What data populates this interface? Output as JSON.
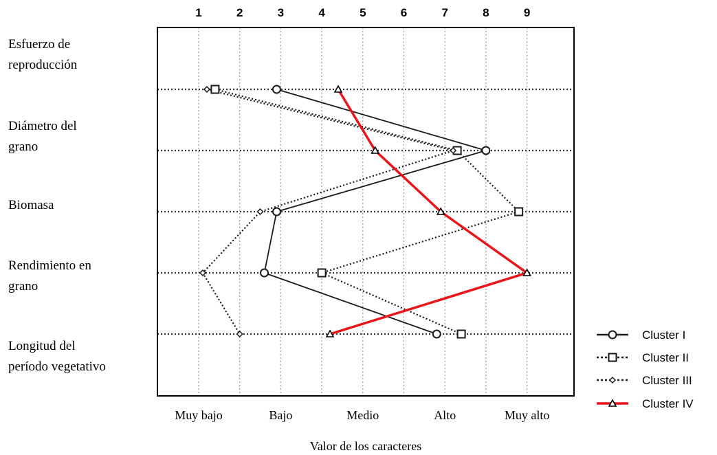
{
  "chart_data": {
    "type": "line",
    "orientation": "horizontal-profile",
    "title": "",
    "xlabel": "Valor de los caracteres",
    "ylabel": "",
    "xlim": [
      0,
      10
    ],
    "x_ticks_top": [
      "1",
      "2",
      "3",
      "4",
      "5",
      "6",
      "7",
      "8",
      "9"
    ],
    "x_tick_values": [
      1,
      2,
      3,
      4,
      5,
      6,
      7,
      8,
      9
    ],
    "x_labels_bottom": [
      {
        "value": 1,
        "label": "Muy bajo"
      },
      {
        "value": 3,
        "label": "Bajo"
      },
      {
        "value": 5,
        "label": "Medio"
      },
      {
        "value": 7,
        "label": "Alto"
      },
      {
        "value": 9,
        "label": "Muy alto"
      }
    ],
    "categories": [
      "Esfuerzo de reproducción",
      "Diámetro del grano",
      "Biomasa",
      "Rendimiento en grano",
      "Longitud del período vegetativo"
    ],
    "category_label_lines": [
      [
        "Esfuerzo de",
        "reproducción"
      ],
      [
        "Diámetro del",
        "grano"
      ],
      [
        "Biomasa"
      ],
      [
        "Rendimiento en",
        "grano"
      ],
      [
        "Longitud del",
        "período vegetativo"
      ]
    ],
    "grid": true,
    "legend_position": "right-bottom",
    "series": [
      {
        "name": "Cluster I",
        "values": [
          2.9,
          8.0,
          2.9,
          2.6,
          6.8
        ],
        "color": "#1a1a1a",
        "dash": "solid",
        "marker": "circle"
      },
      {
        "name": "Cluster II",
        "values": [
          1.4,
          7.3,
          8.8,
          4.0,
          7.4
        ],
        "color": "#1a1a1a",
        "dash": "dotted",
        "marker": "square"
      },
      {
        "name": "Cluster III",
        "values": [
          1.2,
          7.2,
          2.5,
          1.1,
          2.0
        ],
        "color": "#1a1a1a",
        "dash": "dotted",
        "marker": "diamond"
      },
      {
        "name": "Cluster IV",
        "values": [
          4.4,
          5.3,
          6.9,
          9.0,
          4.2
        ],
        "color": "#e8151b",
        "dash": "solid",
        "marker": "triangle"
      }
    ]
  }
}
